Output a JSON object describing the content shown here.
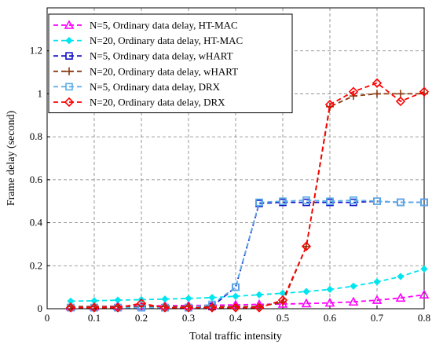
{
  "chart_data": {
    "type": "line",
    "xlabel": "Total traffic intensity",
    "ylabel": "Frame delay (second)",
    "xlim": [
      0,
      0.8
    ],
    "ylim": [
      0,
      1.4
    ],
    "xticks": [
      "0",
      "0.1",
      "0.2",
      "0.3",
      "0.4",
      "0.5",
      "0.6",
      "0.7",
      "0.8"
    ],
    "yticks": [
      "0",
      "0.2",
      "0.4",
      "0.6",
      "0.8",
      "1",
      "1.2"
    ],
    "grid": "dashed",
    "legend_position": "top-left",
    "series": [
      {
        "name": "N=5, Ordinary data delay, HT-MAC",
        "color": "#ff00ff",
        "marker": "triangle",
        "dash": "6,4",
        "x": [
          0.05,
          0.1,
          0.15,
          0.2,
          0.25,
          0.3,
          0.35,
          0.4,
          0.45,
          0.5,
          0.55,
          0.6,
          0.65,
          0.7,
          0.75,
          0.8
        ],
        "y": [
          0.01,
          0.01,
          0.012,
          0.013,
          0.014,
          0.015,
          0.016,
          0.018,
          0.02,
          0.022,
          0.024,
          0.027,
          0.032,
          0.04,
          0.05,
          0.065
        ]
      },
      {
        "name": "N=20, Ordinary data delay, HT-MAC",
        "color": "#00e5ee",
        "marker": "diamond-small",
        "dash": "6,4",
        "x": [
          0.05,
          0.1,
          0.15,
          0.2,
          0.25,
          0.3,
          0.35,
          0.4,
          0.45,
          0.5,
          0.55,
          0.6,
          0.65,
          0.7,
          0.75,
          0.8
        ],
        "y": [
          0.035,
          0.037,
          0.04,
          0.042,
          0.045,
          0.048,
          0.052,
          0.058,
          0.065,
          0.072,
          0.08,
          0.09,
          0.105,
          0.125,
          0.15,
          0.185
        ]
      },
      {
        "name": "N=5, Ordinary data delay, wHART",
        "color": "#1010c8",
        "marker": "square",
        "dash": "6,4",
        "x": [
          0.05,
          0.1,
          0.15,
          0.2,
          0.25,
          0.3,
          0.35,
          0.4,
          0.45,
          0.5,
          0.55,
          0.6,
          0.65,
          0.7,
          0.75,
          0.8
        ],
        "y": [
          0.005,
          0.005,
          0.005,
          0.005,
          0.005,
          0.005,
          0.01,
          0.1,
          0.49,
          0.495,
          0.495,
          0.495,
          0.495,
          0.5,
          0.495,
          0.495
        ]
      },
      {
        "name": "N=20, Ordinary data delay, wHART",
        "color": "#8b3a0f",
        "marker": "plus",
        "dash": "6,4",
        "x": [
          0.05,
          0.1,
          0.15,
          0.2,
          0.25,
          0.3,
          0.35,
          0.4,
          0.45,
          0.5,
          0.55,
          0.6,
          0.65,
          0.7,
          0.75,
          0.8
        ],
        "y": [
          0.01,
          0.01,
          0.01,
          0.01,
          0.01,
          0.01,
          0.01,
          0.01,
          0.01,
          0.03,
          0.29,
          0.94,
          0.99,
          1.0,
          1.0,
          1.0
        ]
      },
      {
        "name": "N=5, Ordinary data delay, DRX",
        "color": "#5aaee8",
        "marker": "square",
        "dash": "6,4",
        "x": [
          0.05,
          0.1,
          0.15,
          0.2,
          0.25,
          0.3,
          0.35,
          0.4,
          0.45,
          0.5,
          0.55,
          0.6,
          0.65,
          0.7,
          0.75,
          0.8
        ],
        "y": [
          0.005,
          0.005,
          0.005,
          0.005,
          0.005,
          0.005,
          0.02,
          0.1,
          0.495,
          0.5,
          0.505,
          0.5,
          0.505,
          0.5,
          0.495,
          0.495
        ]
      },
      {
        "name": "N=20, Ordinary data delay, DRX",
        "color": "#ff0000",
        "marker": "diamond",
        "dash": "6,4",
        "x": [
          0.05,
          0.1,
          0.15,
          0.2,
          0.25,
          0.3,
          0.35,
          0.4,
          0.45,
          0.5,
          0.55,
          0.6,
          0.65,
          0.7,
          0.75,
          0.8
        ],
        "y": [
          0.005,
          0.005,
          0.005,
          0.025,
          0.005,
          0.005,
          0.005,
          0.005,
          0.005,
          0.04,
          0.29,
          0.95,
          1.01,
          1.05,
          0.965,
          1.01
        ]
      }
    ]
  }
}
